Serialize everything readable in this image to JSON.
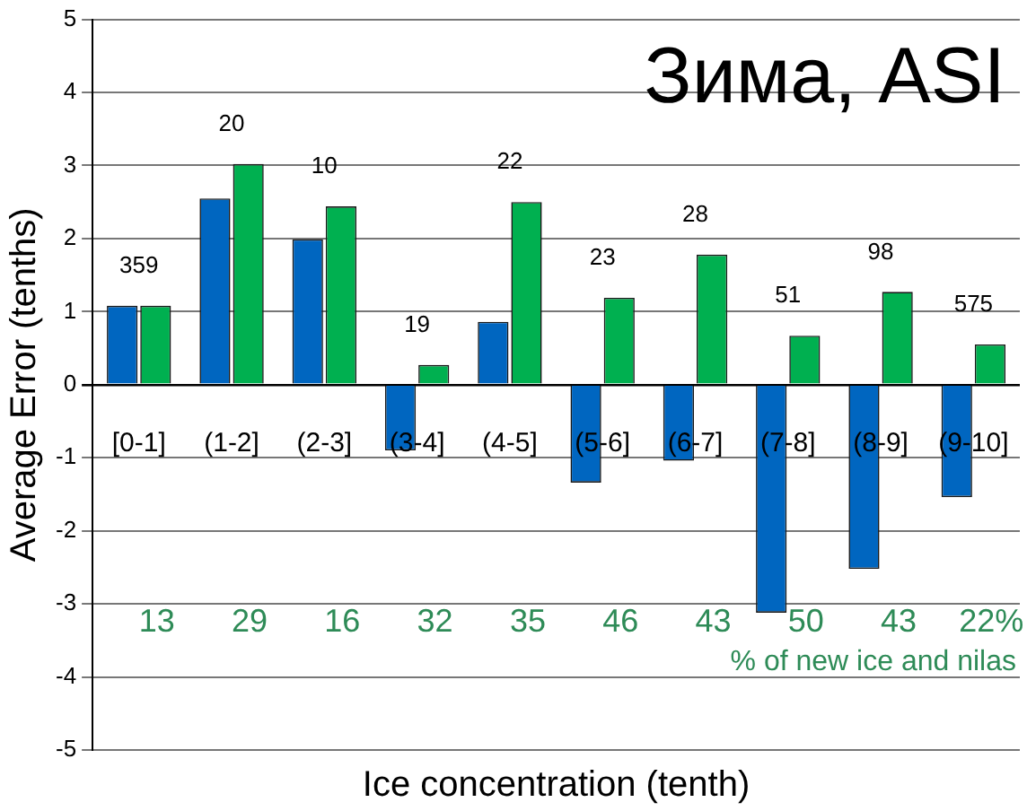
{
  "chart_data": {
    "type": "bar",
    "title": "Зима, ASI",
    "xlabel": "Ice concentration (tenth)",
    "ylabel": "Average Error (tenths)",
    "categories": [
      "[0-1]",
      "(1-2]",
      "(2-3]",
      "(3-4]",
      "(4-5]",
      "(5-6]",
      "(6-7]",
      "(7-8]",
      "(8-9]",
      "(9-10]"
    ],
    "series": [
      {
        "color": "#0066c0",
        "values": [
          1.08,
          2.55,
          1.99,
          -0.9,
          0.86,
          -1.34,
          -1.04,
          -3.12,
          -2.52,
          -1.54
        ]
      },
      {
        "color": "#00b050",
        "values": [
          1.08,
          3.02,
          2.44,
          0.27,
          2.5,
          1.19,
          1.78,
          0.67,
          1.27,
          0.55
        ]
      }
    ],
    "ylim": [
      -5,
      5
    ],
    "yticks": [
      -5,
      -4,
      -3,
      -2,
      -1,
      0,
      1,
      2,
      3,
      4,
      5
    ],
    "grid": "y",
    "legend": false,
    "annotations": [
      "359",
      "20",
      "10",
      "19",
      "22",
      "23",
      "28",
      "51",
      "98",
      "575",
      "13",
      "29",
      "16",
      "32",
      "35",
      "46",
      "43",
      "50",
      "43",
      "22%",
      "% of new ice and nilas"
    ]
  }
}
